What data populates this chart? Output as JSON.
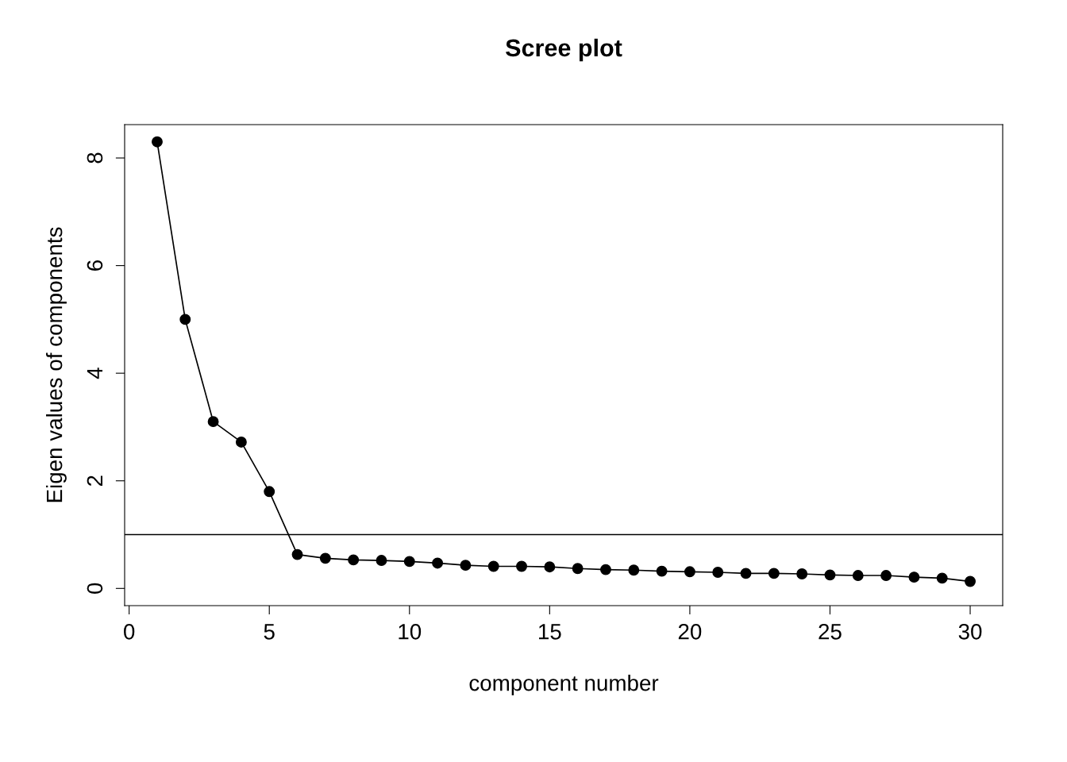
{
  "chart_data": {
    "type": "line",
    "title": "Scree plot",
    "xlabel": "component number",
    "ylabel": "Eigen values of components",
    "x": [
      1,
      2,
      3,
      4,
      5,
      6,
      7,
      8,
      9,
      10,
      11,
      12,
      13,
      14,
      15,
      16,
      17,
      18,
      19,
      20,
      21,
      22,
      23,
      24,
      25,
      26,
      27,
      28,
      29,
      30
    ],
    "series": [
      {
        "color": "#000000",
        "values": [
          8.3,
          5.0,
          3.1,
          2.72,
          1.8,
          0.63,
          0.56,
          0.53,
          0.52,
          0.5,
          0.47,
          0.43,
          0.41,
          0.41,
          0.4,
          0.37,
          0.35,
          0.34,
          0.32,
          0.31,
          0.3,
          0.28,
          0.28,
          0.27,
          0.25,
          0.24,
          0.24,
          0.21,
          0.19,
          0.13
        ]
      }
    ],
    "xlim": [
      -0.16,
      31.16
    ],
    "ylim": [
      -0.32,
      8.62
    ],
    "xticks": [
      0,
      5,
      10,
      15,
      20,
      25,
      30
    ],
    "yticks": [
      0,
      2,
      4,
      6,
      8
    ],
    "ref_lines": [
      {
        "axis": "y",
        "value": 1,
        "color": "#000000"
      }
    ],
    "marker": "circle",
    "line_style": "solid"
  }
}
